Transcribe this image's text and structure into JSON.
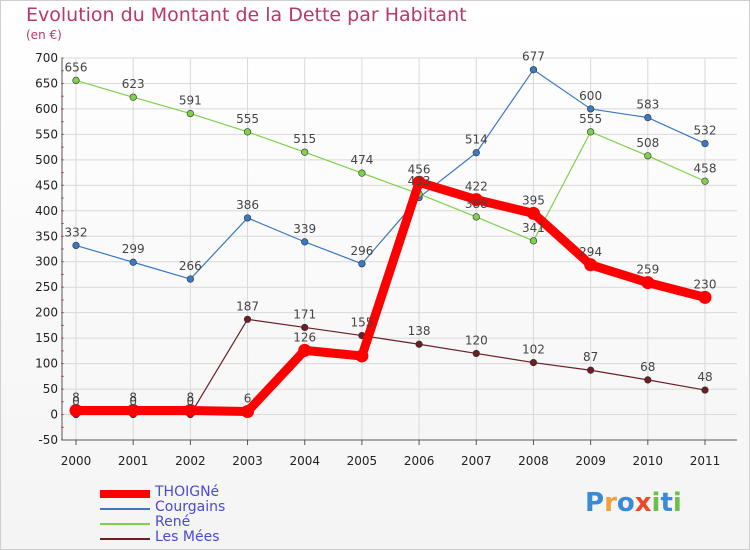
{
  "chart_data": {
    "type": "line",
    "title": "Evolution du Montant de la Dette par Habitant",
    "subtitle": "(en €)",
    "xlabel": "",
    "ylabel": "",
    "ylim": [
      -50,
      700
    ],
    "yticks": [
      "-50",
      "0",
      "50",
      "100",
      "150",
      "200",
      "250",
      "300",
      "350",
      "400",
      "450",
      "500",
      "550",
      "600",
      "650",
      "700"
    ],
    "categories": [
      "2000",
      "2001",
      "2002",
      "2003",
      "2004",
      "2005",
      "2006",
      "2007",
      "2008",
      "2009",
      "2010",
      "2011"
    ],
    "series": [
      {
        "name": "Les Mées",
        "color": "#6b1f24",
        "values": [
          0,
          0,
          0,
          187,
          171,
          155,
          138,
          120,
          102,
          87,
          68,
          48
        ],
        "labels": [
          "0",
          "0",
          "0",
          "187",
          "171",
          "155",
          "138",
          "120",
          "102",
          "87",
          "68",
          "48"
        ]
      },
      {
        "name": "Courgains",
        "color": "#3a78c4",
        "values": [
          332,
          299,
          266,
          386,
          339,
          296,
          426,
          514,
          677,
          600,
          583,
          532
        ],
        "labels": [
          "332",
          "299",
          "266",
          "386",
          "339",
          "296",
          "",
          "514",
          "677",
          "600",
          "583",
          "532"
        ]
      },
      {
        "name": "René",
        "color": "#7fd04a",
        "values": [
          656,
          623,
          591,
          555,
          515,
          474,
          433,
          388,
          341,
          555,
          508,
          458
        ],
        "labels": [
          "656",
          "623",
          "591",
          "555",
          "515",
          "474",
          "433",
          "388",
          "341",
          "555",
          "508",
          "458"
        ]
      },
      {
        "name": "THOIGNé",
        "color": "#ff0000",
        "values": [
          8,
          8,
          8,
          6,
          126,
          115,
          456,
          422,
          395,
          294,
          259,
          230
        ],
        "labels": [
          "8",
          "8",
          "8",
          "6",
          "126",
          "",
          "456",
          "422",
          "395",
          "294",
          "259",
          "230"
        ]
      }
    ],
    "legend": [
      {
        "name": "THOIGNé",
        "color": "#ff0000",
        "style": "thick"
      },
      {
        "name": "Courgains",
        "color": "#3a78c4",
        "style": "thin"
      },
      {
        "name": "René",
        "color": "#7fd04a",
        "style": "thin"
      },
      {
        "name": "Les Mées",
        "color": "#6b1f24",
        "style": "thin"
      }
    ]
  },
  "brand": {
    "name": "Proxiti",
    "letters": [
      {
        "ch": "P",
        "color": "#3a8ad6"
      },
      {
        "ch": "r",
        "color": "#f2a23a"
      },
      {
        "ch": "o",
        "color": "#3a8ad6"
      },
      {
        "ch": "x",
        "color": "#e84a2a"
      },
      {
        "ch": "i",
        "color": "#6cc04a"
      },
      {
        "ch": "t",
        "color": "#3a8ad6"
      },
      {
        "ch": "i",
        "color": "#6cc04a"
      }
    ]
  }
}
